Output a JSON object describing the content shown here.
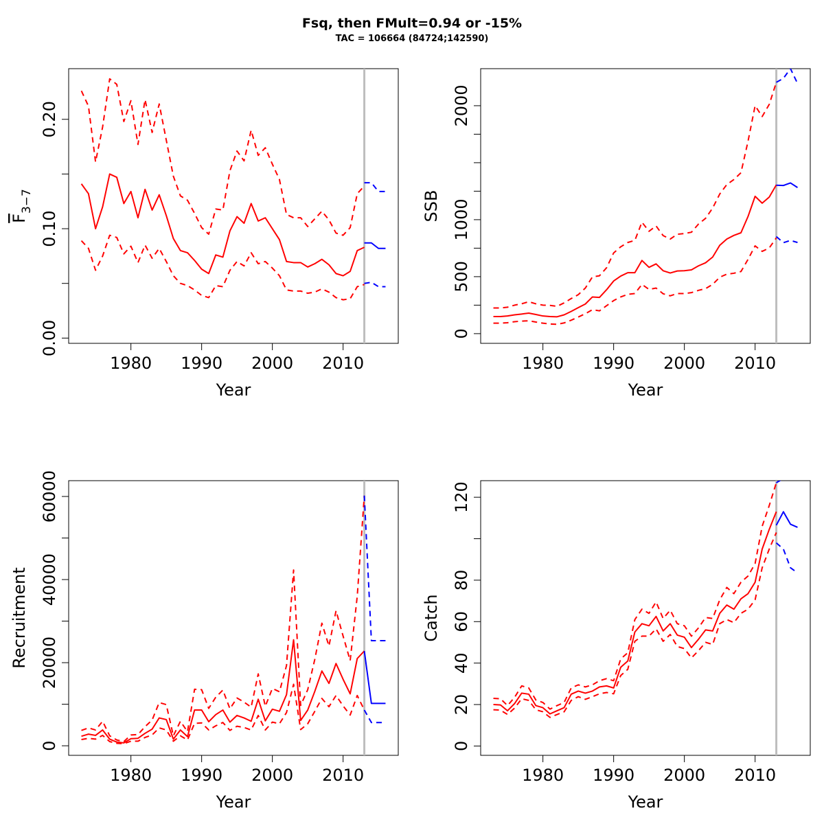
{
  "figure": {
    "title": "Fsq, then FMult=0.94 or -15%",
    "subtitle": "TAC = 106664 (84724;142590)"
  },
  "colors": {
    "history": "#ff0000",
    "forecast": "#0000ff",
    "ref_line": "#bebebe",
    "axis": "#000000"
  },
  "chart_data": [
    {
      "id": "fbar",
      "type": "line",
      "xlabel": "Year",
      "ylabel_main": "F",
      "ylabel_sub": "3−7",
      "ylabel_overbar": true,
      "xlim": [
        1971.2,
        2017.8
      ],
      "ylim": [
        -0.0048,
        0.2463
      ],
      "xticks": [
        1980,
        1990,
        2000,
        2010
      ],
      "xtick_labels": [
        "1980",
        "1990",
        "2000",
        "2010"
      ],
      "yticks": [
        0,
        0.05,
        0.1,
        0.15,
        0.2
      ],
      "ytick_labels": [
        "0.00",
        "",
        "0.10",
        "",
        "0.20"
      ],
      "vline_year": 2013,
      "history": {
        "years": [
          1973,
          1974,
          1975,
          1976,
          1977,
          1978,
          1979,
          1980,
          1981,
          1982,
          1983,
          1984,
          1985,
          1986,
          1987,
          1988,
          1989,
          1990,
          1991,
          1992,
          1993,
          1994,
          1995,
          1996,
          1997,
          1998,
          1999,
          2000,
          2001,
          2002,
          2003,
          2004,
          2005,
          2006,
          2007,
          2008,
          2009,
          2010,
          2011,
          2012,
          2013
        ],
        "median": [
          0.141,
          0.132,
          0.1,
          0.12,
          0.15,
          0.147,
          0.123,
          0.134,
          0.11,
          0.136,
          0.117,
          0.131,
          0.112,
          0.091,
          0.08,
          0.078,
          0.071,
          0.063,
          0.059,
          0.076,
          0.074,
          0.098,
          0.111,
          0.105,
          0.123,
          0.107,
          0.11,
          0.1,
          0.09,
          0.07,
          0.069,
          0.069,
          0.065,
          0.068,
          0.072,
          0.067,
          0.059,
          0.057,
          0.061,
          0.08,
          0.083
        ],
        "lower": [
          0.089,
          0.082,
          0.062,
          0.075,
          0.094,
          0.092,
          0.077,
          0.084,
          0.069,
          0.085,
          0.073,
          0.082,
          0.07,
          0.057,
          0.05,
          0.048,
          0.044,
          0.039,
          0.037,
          0.048,
          0.047,
          0.062,
          0.07,
          0.066,
          0.078,
          0.068,
          0.07,
          0.064,
          0.057,
          0.044,
          0.043,
          0.043,
          0.041,
          0.042,
          0.045,
          0.042,
          0.037,
          0.035,
          0.036,
          0.047,
          0.049
        ],
        "upper": [
          0.226,
          0.212,
          0.161,
          0.193,
          0.237,
          0.232,
          0.198,
          0.217,
          0.177,
          0.218,
          0.188,
          0.214,
          0.181,
          0.148,
          0.13,
          0.126,
          0.114,
          0.101,
          0.095,
          0.118,
          0.117,
          0.153,
          0.171,
          0.162,
          0.19,
          0.167,
          0.174,
          0.159,
          0.145,
          0.113,
          0.11,
          0.11,
          0.102,
          0.109,
          0.116,
          0.108,
          0.096,
          0.094,
          0.101,
          0.132,
          0.139
        ]
      },
      "forecast": {
        "years": [
          2013,
          2014,
          2015,
          2016
        ],
        "median": [
          0.087,
          0.087,
          0.082,
          0.082
        ],
        "lower": [
          0.05,
          0.051,
          0.047,
          0.047
        ],
        "upper": [
          0.142,
          0.142,
          0.134,
          0.134
        ]
      }
    },
    {
      "id": "ssb",
      "type": "line",
      "xlabel": "Year",
      "ylabel_main": "SSB",
      "xlim": [
        1971.2,
        2017.8
      ],
      "ylim": [
        -85,
        2325
      ],
      "xticks": [
        1980,
        1990,
        2000,
        2010
      ],
      "xtick_labels": [
        "1980",
        "1990",
        "2000",
        "2010"
      ],
      "yticks": [
        0,
        250,
        500,
        750,
        1000,
        1250,
        1500,
        1750,
        2000
      ],
      "ytick_labels": [
        "0",
        "",
        "500",
        "",
        "1000",
        "",
        "",
        "",
        "2000"
      ],
      "vline_year": 2013,
      "history": {
        "years": [
          1973,
          1974,
          1975,
          1976,
          1977,
          1978,
          1979,
          1980,
          1981,
          1982,
          1983,
          1984,
          1985,
          1986,
          1987,
          1988,
          1989,
          1990,
          1991,
          1992,
          1993,
          1994,
          1995,
          1996,
          1997,
          1998,
          1999,
          2000,
          2001,
          2002,
          2003,
          2004,
          2005,
          2006,
          2007,
          2008,
          2009,
          2010,
          2011,
          2012,
          2013
        ],
        "median": [
          150,
          150,
          155,
          165,
          172,
          180,
          168,
          155,
          150,
          148,
          165,
          195,
          228,
          260,
          322,
          318,
          385,
          462,
          505,
          535,
          535,
          642,
          582,
          612,
          552,
          532,
          550,
          552,
          560,
          595,
          622,
          672,
          775,
          830,
          862,
          885,
          1028,
          1205,
          1145,
          1198,
          1305
        ],
        "lower": [
          92,
          92,
          96,
          105,
          110,
          113,
          102,
          92,
          85,
          82,
          94,
          118,
          146,
          175,
          210,
          200,
          245,
          290,
          322,
          345,
          352,
          432,
          388,
          400,
          350,
          332,
          352,
          352,
          360,
          380,
          395,
          432,
          495,
          522,
          530,
          545,
          652,
          770,
          722,
          752,
          840
        ],
        "upper": [
          225,
          225,
          232,
          250,
          262,
          280,
          262,
          250,
          248,
          240,
          270,
          308,
          342,
          400,
          498,
          508,
          578,
          708,
          762,
          800,
          818,
          978,
          898,
          945,
          860,
          830,
          872,
          878,
          890,
          962,
          1012,
          1102,
          1225,
          1308,
          1352,
          1412,
          1688,
          2000,
          1905,
          2012,
          2205
        ]
      },
      "forecast": {
        "years": [
          2013,
          2014,
          2015,
          2016
        ],
        "median": [
          1302,
          1300,
          1322,
          1282
        ],
        "lower": [
          852,
          798,
          818,
          800
        ],
        "upper": [
          2205,
          2240,
          2325,
          2195
        ]
      }
    },
    {
      "id": "recruitment",
      "type": "line",
      "xlabel": "Year",
      "ylabel_main": "Recruitment",
      "xlim": [
        1971.2,
        2017.8
      ],
      "ylim": [
        -2300,
        63800
      ],
      "xticks": [
        1980,
        1990,
        2000,
        2010
      ],
      "xtick_labels": [
        "1980",
        "1990",
        "2000",
        "2010"
      ],
      "yticks": [
        0,
        10000,
        20000,
        30000,
        40000,
        50000,
        60000
      ],
      "ytick_labels": [
        "0",
        "",
        "20000",
        "",
        "40000",
        "",
        "60000"
      ],
      "vline_year": 2013,
      "history": {
        "years": [
          1973,
          1974,
          1975,
          1976,
          1977,
          1978,
          1979,
          1980,
          1981,
          1982,
          1983,
          1984,
          1985,
          1986,
          1987,
          1988,
          1989,
          1990,
          1991,
          1992,
          1993,
          1994,
          1995,
          1996,
          1997,
          1998,
          1999,
          2000,
          2001,
          2002,
          2003,
          2004,
          2005,
          2006,
          2007,
          2008,
          2009,
          2010,
          2011,
          2012,
          2013
        ],
        "median": [
          2300,
          2800,
          2500,
          3800,
          1600,
          900,
          700,
          1700,
          1800,
          3000,
          4000,
          6700,
          6300,
          1600,
          3800,
          2200,
          8600,
          8600,
          5800,
          7500,
          8600,
          5700,
          7300,
          6700,
          5900,
          11200,
          6000,
          8800,
          8300,
          12300,
          25500,
          6100,
          8600,
          13100,
          18000,
          15000,
          19800,
          16000,
          12500,
          21000,
          22800
        ],
        "lower": [
          1500,
          1800,
          1600,
          2500,
          1000,
          600,
          500,
          1100,
          1100,
          2000,
          2600,
          4300,
          3800,
          1100,
          2400,
          1400,
          5400,
          5500,
          3800,
          4800,
          5600,
          3700,
          4700,
          4400,
          3800,
          7300,
          3800,
          5700,
          5300,
          8000,
          14800,
          3900,
          5300,
          8300,
          11400,
          9400,
          12100,
          9600,
          7400,
          12100,
          8600
        ],
        "upper": [
          3700,
          4300,
          3800,
          5900,
          2400,
          1400,
          1000,
          2600,
          2700,
          4600,
          6200,
          10400,
          9900,
          2400,
          5900,
          3400,
          13600,
          13500,
          9000,
          11700,
          13400,
          8900,
          11500,
          10500,
          9300,
          17300,
          9500,
          13800,
          13000,
          19300,
          42300,
          9700,
          13500,
          20800,
          29500,
          24000,
          32500,
          26400,
          20500,
          36000,
          60200
        ]
      },
      "forecast": {
        "years": [
          2013,
          2014,
          2015,
          2016
        ],
        "median": [
          22800,
          10200,
          10200,
          10200
        ],
        "lower": [
          8600,
          5600,
          5600,
          5600
        ],
        "upper": [
          60200,
          25300,
          25300,
          25300
        ]
      }
    },
    {
      "id": "catch",
      "type": "line",
      "xlabel": "Year",
      "ylabel_main": "Catch",
      "xlim": [
        1971.2,
        2017.8
      ],
      "ylim": [
        -4.5,
        128
      ],
      "xticks": [
        1980,
        1990,
        2000,
        2010
      ],
      "xtick_labels": [
        "1980",
        "1990",
        "2000",
        "2010"
      ],
      "yticks": [
        0,
        20,
        40,
        60,
        80,
        100,
        120
      ],
      "ytick_labels": [
        "0",
        "20",
        "40",
        "60",
        "80",
        "",
        "120"
      ],
      "vline_year": 2013,
      "history": {
        "years": [
          1973,
          1974,
          1975,
          1976,
          1977,
          1978,
          1979,
          1980,
          1981,
          1982,
          1983,
          1984,
          1985,
          1986,
          1987,
          1988,
          1989,
          1990,
          1991,
          1992,
          1993,
          1994,
          1995,
          1996,
          1997,
          1998,
          1999,
          2000,
          2001,
          2002,
          2003,
          2004,
          2005,
          2006,
          2007,
          2008,
          2009,
          2010,
          2011,
          2012,
          2013
        ],
        "median": [
          20,
          19.8,
          17,
          20.5,
          25.5,
          25,
          19.5,
          18.5,
          15.5,
          17,
          18.5,
          25,
          26.5,
          25.5,
          26.5,
          28.5,
          29,
          28,
          38,
          41,
          55,
          59,
          58,
          62.5,
          55.5,
          59,
          53.5,
          52.5,
          47.5,
          51.5,
          56,
          55.5,
          64,
          68,
          66,
          71,
          73.5,
          79,
          95,
          104.5,
          113
        ],
        "lower": [
          17.5,
          17.3,
          15.2,
          18.3,
          22.8,
          22,
          17.5,
          16.5,
          13.8,
          15.2,
          16.5,
          22,
          23.8,
          22.5,
          23.8,
          25.2,
          25.8,
          25.2,
          34,
          37,
          50.5,
          53,
          53,
          56.5,
          50.5,
          53.8,
          48,
          47,
          42.5,
          46,
          50,
          49,
          59,
          61,
          59.5,
          64,
          66,
          70.5,
          86,
          95,
          103
        ],
        "upper": [
          23,
          22.8,
          19.5,
          23.5,
          29,
          28,
          22.2,
          21,
          17.8,
          19.5,
          21,
          28,
          29.5,
          28.5,
          29.5,
          31.5,
          32.5,
          31.5,
          42,
          45,
          61,
          66,
          64,
          69.5,
          61.5,
          65.5,
          59,
          58,
          53,
          57,
          62,
          61.5,
          70.5,
          76.5,
          73.5,
          79,
          82,
          88,
          106,
          116,
          127
        ]
      },
      "forecast": {
        "years": [
          2013,
          2014,
          2015,
          2016
        ],
        "median": [
          106.5,
          113,
          107,
          105.5
        ],
        "lower": [
          98,
          95,
          86,
          83.5
        ],
        "upper": [
          127,
          129,
          129,
          129
        ]
      }
    }
  ]
}
